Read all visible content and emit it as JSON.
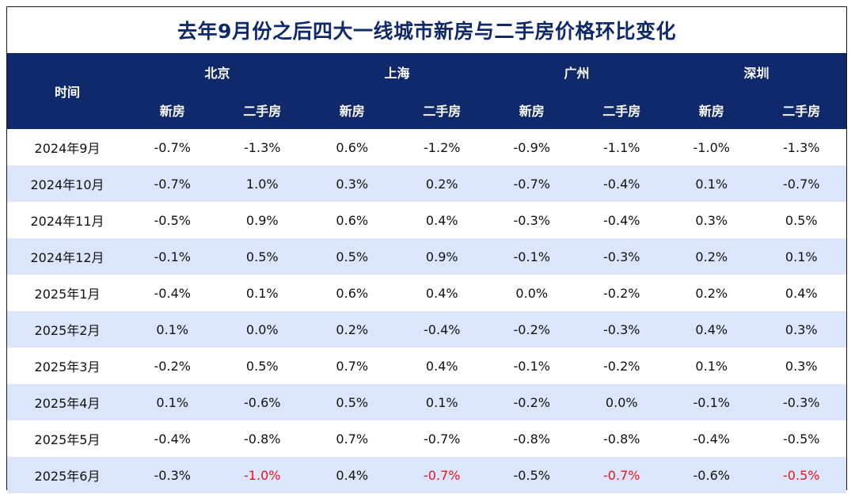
{
  "title": "去年9月份之后四大一线城市新房与二手房价格环比变化",
  "header": {
    "time": "时间",
    "cities": [
      "北京",
      "上海",
      "广州",
      "深圳"
    ],
    "sub": [
      "新房",
      "二手房"
    ]
  },
  "rows": [
    {
      "time": "2024年9月",
      "values": [
        "-0.7%",
        "-1.3%",
        "0.6%",
        "-1.2%",
        "-0.9%",
        "-1.1%",
        "-1.0%",
        "-1.3%"
      ]
    },
    {
      "time": "2024年10月",
      "values": [
        "-0.7%",
        "1.0%",
        "0.3%",
        "0.2%",
        "-0.7%",
        "-0.4%",
        "0.1%",
        "-0.7%"
      ]
    },
    {
      "time": "2024年11月",
      "values": [
        "-0.5%",
        "0.9%",
        "0.6%",
        "0.4%",
        "-0.3%",
        "-0.4%",
        "0.3%",
        "0.5%"
      ]
    },
    {
      "time": "2024年12月",
      "values": [
        "-0.1%",
        "0.5%",
        "0.5%",
        "0.9%",
        "-0.1%",
        "-0.3%",
        "0.2%",
        "0.1%"
      ]
    },
    {
      "time": "2025年1月",
      "values": [
        "-0.4%",
        "0.1%",
        "0.6%",
        "0.4%",
        "0.0%",
        "-0.2%",
        "0.2%",
        "0.4%"
      ]
    },
    {
      "time": "2025年2月",
      "values": [
        "0.1%",
        "0.0%",
        "0.2%",
        "-0.4%",
        "-0.2%",
        "-0.3%",
        "0.4%",
        "0.3%"
      ]
    },
    {
      "time": "2025年3月",
      "values": [
        "-0.2%",
        "0.5%",
        "0.7%",
        "0.4%",
        "-0.1%",
        "-0.2%",
        "0.1%",
        "0.3%"
      ]
    },
    {
      "time": "2025年4月",
      "values": [
        "0.1%",
        "-0.6%",
        "0.5%",
        "0.1%",
        "-0.2%",
        "0.0%",
        "-0.1%",
        "-0.3%"
      ]
    },
    {
      "time": "2025年5月",
      "values": [
        "-0.4%",
        "-0.8%",
        "0.7%",
        "-0.7%",
        "-0.8%",
        "-0.8%",
        "-0.4%",
        "-0.5%"
      ]
    },
    {
      "time": "2025年6月",
      "values": [
        "-0.3%",
        "-1.0%",
        "0.4%",
        "-0.7%",
        "-0.5%",
        "-0.7%",
        "-0.6%",
        "-0.5%"
      ],
      "highlight_cols": [
        1,
        3,
        5,
        7
      ]
    }
  ],
  "colors": {
    "header_bg": "#10296b",
    "title_text": "#10296b",
    "stripe": "#dbe5fb",
    "highlight_text": "#e3161c"
  }
}
